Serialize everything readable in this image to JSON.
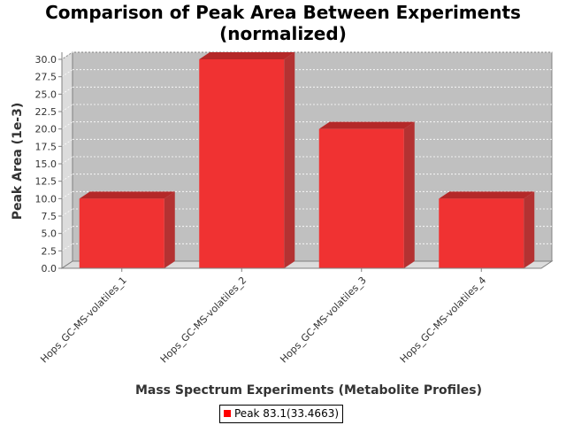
{
  "chart_data": {
    "type": "bar",
    "title": "Comparison of Peak Area Between Experiments (normalized)",
    "title_lines": [
      "Comparison of Peak Area Between Experiments",
      "(normalized)"
    ],
    "xlabel": "Mass Spectrum Experiments (Metabolite Profiles)",
    "ylabel": "Peak Area (1e-3)",
    "categories": [
      "Hops_GC-MS-volatiles_1",
      "Hops_GC-MS-volatiles_2",
      "Hops_GC-MS-volatiles_3",
      "Hops_GC-MS-volatiles_4"
    ],
    "series": [
      {
        "name": "Peak 83.1(33.4663)",
        "values": [
          10.0,
          30.0,
          20.0,
          10.0
        ]
      }
    ],
    "ylim": [
      0,
      30
    ],
    "yticks": [
      "0.0",
      "2.5",
      "5.0",
      "7.5",
      "10.0",
      "12.5",
      "15.0",
      "17.5",
      "20.0",
      "22.5",
      "25.0",
      "27.5",
      "30.0"
    ],
    "grid": true,
    "legend_position": "bottom",
    "bar_color": "#ff0000",
    "plot_background": "#c0c0c0"
  }
}
